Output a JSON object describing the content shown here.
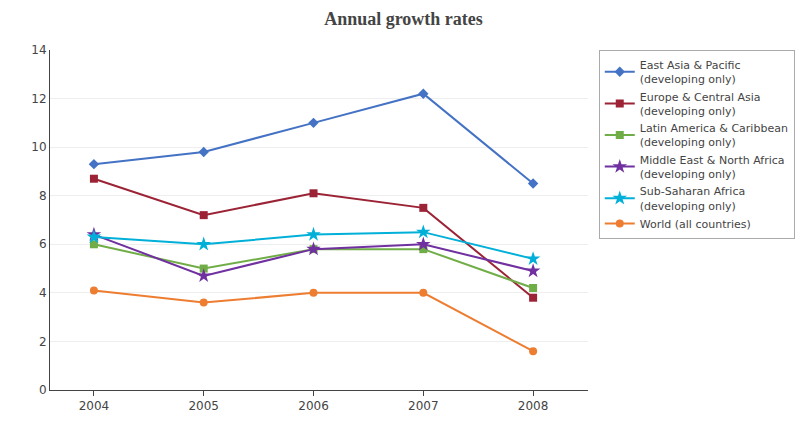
{
  "chart_data": {
    "type": "line",
    "title": "Annual growth rates",
    "x": [
      2004,
      2005,
      2006,
      2007,
      2008
    ],
    "series": [
      {
        "name": "East Asia & Pacific\n(developing only)",
        "color": "#4472C4",
        "marker": "diamond",
        "values": [
          9.3,
          9.8,
          11.0,
          12.2,
          8.5
        ]
      },
      {
        "name": "Europe & Central Asia\n(developing only)",
        "color": "#9B2335",
        "marker": "square",
        "values": [
          8.7,
          7.2,
          8.1,
          7.5,
          3.8
        ]
      },
      {
        "name": "Latin America & Caribbean\n(developing only)",
        "color": "#70AD47",
        "marker": "square",
        "values": [
          6.0,
          5.0,
          5.8,
          5.8,
          4.2
        ]
      },
      {
        "name": "Middle East & North Africa\n(developing only)",
        "color": "#7030A0",
        "marker": "star",
        "values": [
          6.4,
          4.7,
          5.8,
          6.0,
          4.9
        ]
      },
      {
        "name": "Sub-Saharan Africa\n(developing only)",
        "color": "#00B0D8",
        "marker": "star",
        "values": [
          6.3,
          6.0,
          6.4,
          6.5,
          5.4
        ]
      },
      {
        "name": "World (all countries)",
        "color": "#ED7D31",
        "marker": "circle",
        "values": [
          4.1,
          3.6,
          4.0,
          4.0,
          1.6
        ]
      }
    ],
    "xlim": [
      2003.6,
      2008.5
    ],
    "xticks": [
      2004,
      2005,
      2006,
      2007,
      2008
    ],
    "ylim": [
      0,
      14
    ],
    "yticks": [
      0,
      2,
      4,
      6,
      8,
      10,
      12,
      14
    ],
    "grid": "y",
    "legend": "right"
  }
}
